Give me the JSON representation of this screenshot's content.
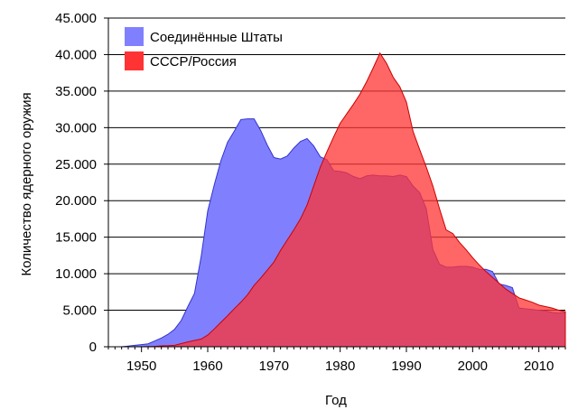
{
  "chart_data": {
    "type": "area",
    "xlabel": "Год",
    "ylabel": "Количество ядерного оружия",
    "xlim": [
      1945,
      2014
    ],
    "ylim": [
      0,
      45000
    ],
    "x_ticks": [
      1950,
      1960,
      1970,
      1980,
      1990,
      2000,
      2010
    ],
    "x_tick_labels": [
      "1950",
      "1960",
      "1970",
      "1980",
      "1990",
      "2000",
      "2010"
    ],
    "y_ticks": [
      0,
      5000,
      10000,
      15000,
      20000,
      25000,
      30000,
      35000,
      40000,
      45000
    ],
    "y_tick_labels": [
      "0",
      "5.000",
      "10.000",
      "15.000",
      "20.000",
      "25.000",
      "30.000",
      "35.000",
      "40.000",
      "45.000"
    ],
    "grid": "horizontal",
    "legend_position": "top-left",
    "series": [
      {
        "name": "Соединённые Штаты",
        "color": "#8080ff",
        "edge_color": "#3333cc",
        "x": [
          1945,
          1946,
          1947,
          1948,
          1949,
          1950,
          1951,
          1952,
          1953,
          1954,
          1955,
          1956,
          1957,
          1958,
          1959,
          1960,
          1961,
          1962,
          1963,
          1964,
          1965,
          1966,
          1967,
          1968,
          1969,
          1970,
          1971,
          1972,
          1973,
          1974,
          1975,
          1976,
          1977,
          1978,
          1979,
          1980,
          1981,
          1982,
          1983,
          1984,
          1985,
          1986,
          1987,
          1988,
          1989,
          1990,
          1991,
          1992,
          1993,
          1994,
          1995,
          1996,
          1997,
          1998,
          1999,
          2000,
          2001,
          2002,
          2003,
          2004,
          2005,
          2006,
          2007,
          2008,
          2009,
          2010,
          2011,
          2012,
          2013,
          2014
        ],
        "values": [
          0,
          0,
          0,
          100,
          200,
          300,
          400,
          800,
          1200,
          1700,
          2400,
          3600,
          5500,
          7300,
          12300,
          18600,
          22200,
          25500,
          28000,
          29500,
          31100,
          31200,
          31200,
          29600,
          27600,
          25900,
          25700,
          26100,
          27200,
          28100,
          28500,
          27500,
          26000,
          25600,
          24100,
          24000,
          23800,
          23300,
          23000,
          23400,
          23500,
          23400,
          23400,
          23300,
          23500,
          23300,
          22000,
          21100,
          18900,
          13300,
          11300,
          10900,
          10900,
          11000,
          11000,
          10900,
          10600,
          10600,
          10300,
          8600,
          8400,
          8100,
          5300,
          5200,
          5100,
          5000,
          4900,
          4700,
          4600,
          4700
        ]
      },
      {
        "name": "СССР/Россия",
        "color": "#ff3333",
        "edge_color": "#cc0000",
        "x": [
          1945,
          1946,
          1947,
          1948,
          1949,
          1950,
          1951,
          1952,
          1953,
          1954,
          1955,
          1956,
          1957,
          1958,
          1959,
          1960,
          1961,
          1962,
          1963,
          1964,
          1965,
          1966,
          1967,
          1968,
          1969,
          1970,
          1971,
          1972,
          1973,
          1974,
          1975,
          1976,
          1977,
          1978,
          1979,
          1980,
          1981,
          1982,
          1983,
          1984,
          1985,
          1986,
          1987,
          1988,
          1989,
          1990,
          1991,
          1992,
          1993,
          1994,
          1995,
          1996,
          1997,
          1998,
          1999,
          2000,
          2001,
          2002,
          2003,
          2004,
          2005,
          2006,
          2007,
          2008,
          2009,
          2010,
          2011,
          2012,
          2013,
          2014
        ],
        "values": [
          0,
          0,
          0,
          0,
          0,
          5,
          25,
          50,
          120,
          150,
          200,
          430,
          660,
          870,
          1050,
          1600,
          2450,
          3350,
          4250,
          5200,
          6100,
          7100,
          8400,
          9400,
          10500,
          11600,
          13200,
          14600,
          16000,
          17500,
          19400,
          22000,
          24600,
          26700,
          28700,
          30600,
          31900,
          33200,
          34600,
          36300,
          38200,
          40200,
          38800,
          36900,
          35600,
          33500,
          29500,
          27000,
          24600,
          22000,
          18900,
          16000,
          15500,
          14300,
          13300,
          12200,
          11200,
          10300,
          9500,
          8700,
          7900,
          7300,
          6700,
          6400,
          6100,
          5700,
          5500,
          5300,
          5000,
          4800
        ]
      }
    ]
  }
}
